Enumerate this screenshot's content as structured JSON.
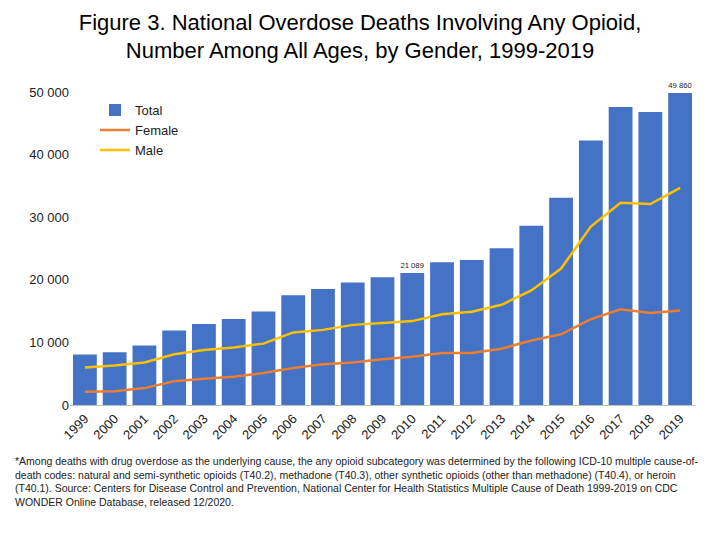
{
  "chart_data": {
    "type": "bar",
    "title": "Figure 3. National Overdose Deaths Involving Any Opioid,\nNumber Among All Ages, by Gender, 1999-2019",
    "categories": [
      "1999",
      "2000",
      "2001",
      "2002",
      "2003",
      "2004",
      "2005",
      "2006",
      "2007",
      "2008",
      "2009",
      "2010",
      "2011",
      "2012",
      "2013",
      "2014",
      "2015",
      "2016",
      "2017",
      "2018",
      "2019"
    ],
    "series": [
      {
        "name": "Total",
        "type": "bar",
        "color": "#4472c4",
        "values": [
          8048,
          8407,
          9496,
          11920,
          12940,
          13756,
          14918,
          17545,
          18516,
          19582,
          20422,
          21089,
          22784,
          23166,
          25052,
          28647,
          33091,
          42249,
          47600,
          46802,
          49860
        ],
        "value_labels": [
          null,
          null,
          null,
          null,
          null,
          null,
          null,
          null,
          null,
          null,
          null,
          "21 089",
          null,
          null,
          null,
          null,
          null,
          null,
          null,
          null,
          "49 860"
        ]
      },
      {
        "name": "Female",
        "type": "line",
        "color": "#ed7d31",
        "values": [
          2100,
          2200,
          2700,
          3800,
          4200,
          4500,
          5100,
          5900,
          6500,
          6800,
          7300,
          7700,
          8300,
          8300,
          9000,
          10300,
          11300,
          13700,
          15300,
          14700,
          15100
        ]
      },
      {
        "name": "Male",
        "type": "line",
        "color": "#ffc000",
        "values": [
          6000,
          6300,
          6800,
          8100,
          8800,
          9200,
          9800,
          11600,
          12000,
          12800,
          13100,
          13400,
          14500,
          14900,
          16000,
          18300,
          21800,
          28500,
          32300,
          32100,
          34700
        ]
      }
    ],
    "ylim": [
      0,
      50000
    ],
    "yticks": [
      0,
      {
        "value": 10000,
        "label": "10 000"
      },
      {
        "value": 20000,
        "label": "20 000"
      },
      {
        "value": 30000,
        "label": "30 000"
      },
      {
        "value": 40000,
        "label": "40 000"
      },
      {
        "value": 50000,
        "label": "50 000"
      }
    ],
    "grid": false,
    "legend": "upper left",
    "data_labels": true,
    "annotations": [
      "*Among deaths with drug overdose as the underlying cause, the any opioid subcategory was determined by the following ICD-10 multiple cause-of-death codes: natural and semi-synthetic opioids (T40.2), methadone (T40.3), other synthetic opioids (other than methadone) (T40.4), or heroin (T40.1). Source: Centers for Disease Control and Prevention, National Center for Health Statistics Multiple Cause of Death 1999-2019 on CDC WONDER Online Database, released 12/2020."
    ]
  }
}
